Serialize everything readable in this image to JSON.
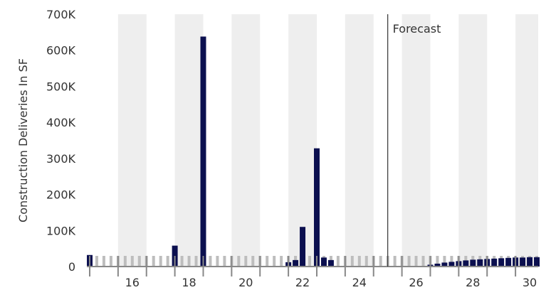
{
  "chart_data": {
    "type": "bar",
    "title": "",
    "xlabel": "",
    "ylabel": "Construction Deliveries In SF",
    "ylim": [
      0,
      700000
    ],
    "y_ticks": [
      0,
      100000,
      200000,
      300000,
      400000,
      500000,
      600000,
      700000
    ],
    "y_tick_labels": [
      "0",
      "100K",
      "200K",
      "300K",
      "400K",
      "500K",
      "600K",
      "700K"
    ],
    "x_range": [
      2014.4,
      2030.3
    ],
    "x_ticks": [
      2016,
      2018,
      2020,
      2022,
      2024,
      2026,
      2028,
      2030
    ],
    "x_tick_labels": [
      "16",
      "18",
      "20",
      "22",
      "24",
      "26",
      "28",
      "30"
    ],
    "shaded_years": [
      2016,
      2018,
      2020,
      2022,
      2024,
      2026,
      2028,
      2030
    ],
    "grid": false,
    "forecast_marker": {
      "x": 2025.0,
      "label": "Forecast"
    },
    "colors": {
      "bar": "#0b0f4f",
      "shade": "#eeeeee",
      "placeholder": "#bdbdbd"
    },
    "series": [
      {
        "values": [
          {
            "x": 2014.5,
            "y": 32000
          },
          {
            "x": 2017.5,
            "y": 58000
          },
          {
            "x": 2018.5,
            "y": 638000
          },
          {
            "x": 2021.5,
            "y": 12000
          },
          {
            "x": 2021.75,
            "y": 18000
          },
          {
            "x": 2022.0,
            "y": 110000
          },
          {
            "x": 2022.5,
            "y": 328000
          },
          {
            "x": 2022.75,
            "y": 25000
          },
          {
            "x": 2023.0,
            "y": 18000
          },
          {
            "x": 2026.5,
            "y": 5000
          },
          {
            "x": 2026.75,
            "y": 8000
          },
          {
            "x": 2027.0,
            "y": 11000
          },
          {
            "x": 2027.25,
            "y": 13000
          },
          {
            "x": 2027.5,
            "y": 15000
          },
          {
            "x": 2027.75,
            "y": 17000
          },
          {
            "x": 2028.0,
            "y": 19000
          },
          {
            "x": 2028.25,
            "y": 20000
          },
          {
            "x": 2028.5,
            "y": 21000
          },
          {
            "x": 2028.75,
            "y": 22000
          },
          {
            "x": 2029.0,
            "y": 23000
          },
          {
            "x": 2029.25,
            "y": 24000
          },
          {
            "x": 2029.5,
            "y": 25000
          },
          {
            "x": 2029.75,
            "y": 25000
          },
          {
            "x": 2030.0,
            "y": 26000
          },
          {
            "x": 2030.25,
            "y": 26000
          }
        ]
      }
    ]
  }
}
